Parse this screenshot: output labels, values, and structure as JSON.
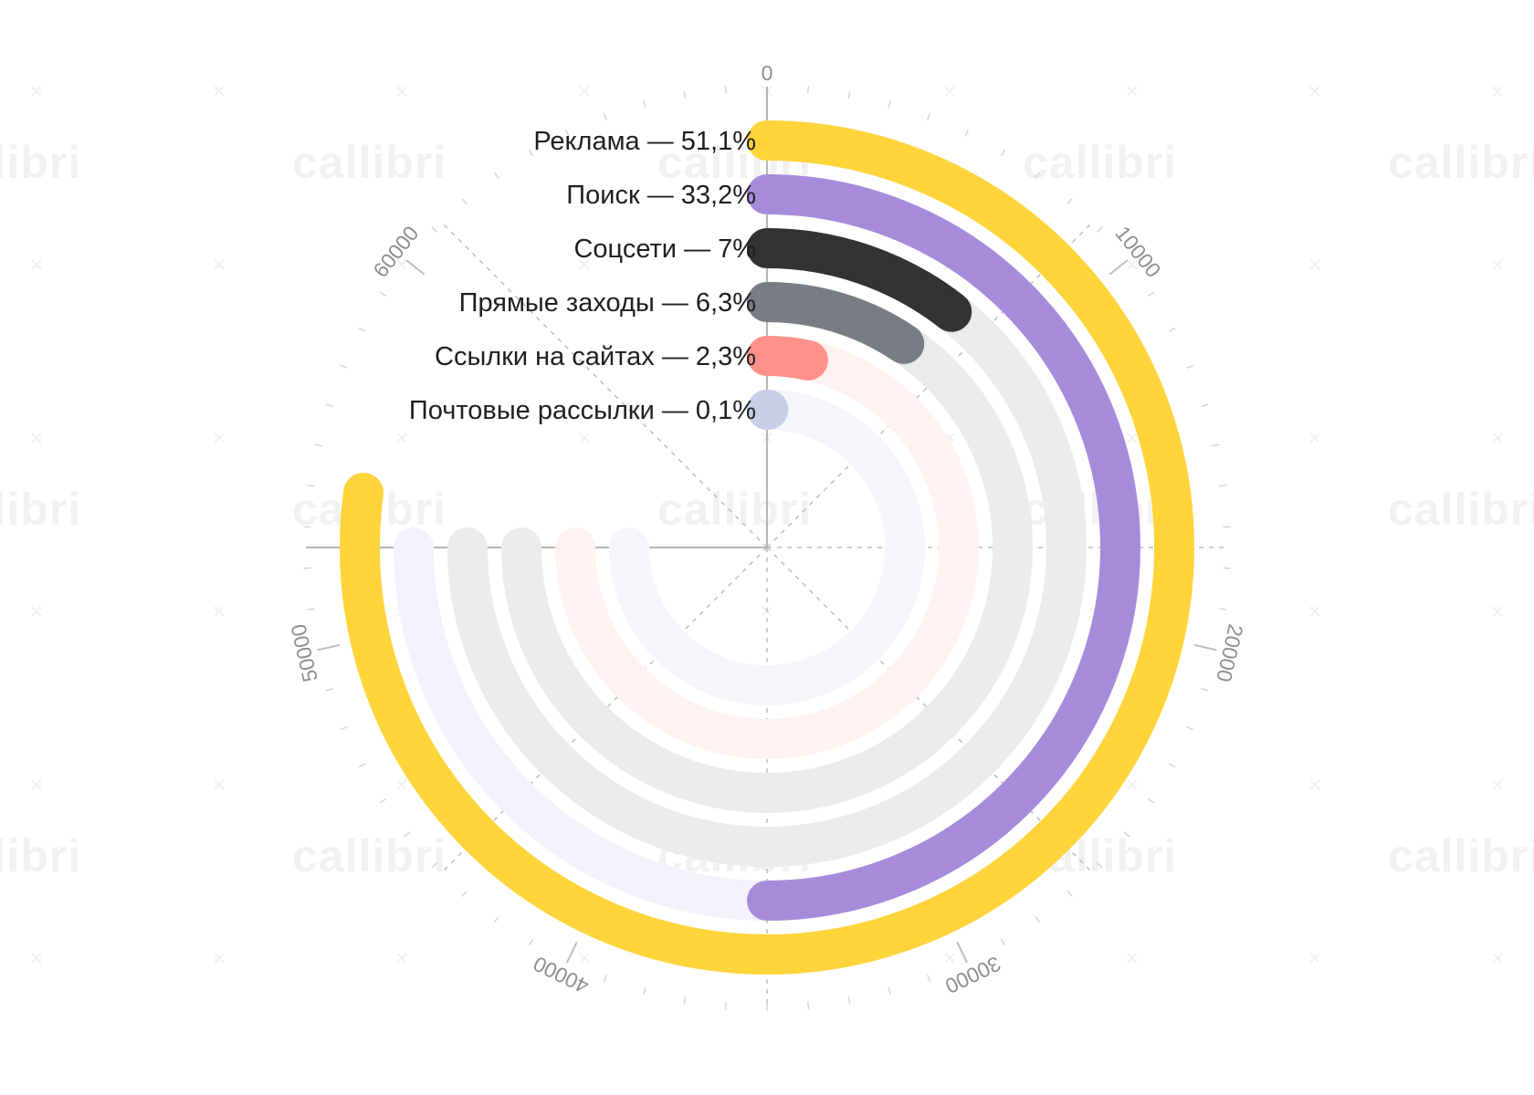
{
  "watermark": "callibri",
  "chart_data": {
    "type": "radial-bar",
    "title": "",
    "axis": {
      "min": 0,
      "max": 70000,
      "ticks": [
        0,
        10000,
        20000,
        30000,
        40000,
        50000,
        60000
      ]
    },
    "series": [
      {
        "name": "Реклама",
        "label": "Реклама — 51,1%",
        "percent": 51.1,
        "value": 54000,
        "color": "#FFD43B",
        "track": "#FFF9E3"
      },
      {
        "name": "Поиск",
        "label": "Поиск — 33,2%",
        "percent": 33.2,
        "value": 35000,
        "color": "#A78BDB",
        "track": "#F3F2FA"
      },
      {
        "name": "Соцсети",
        "label": "Соцсети — 7%",
        "percent": 7,
        "value": 7400,
        "color": "#333333",
        "track": "#EBEBEB"
      },
      {
        "name": "Прямые заходы",
        "label": "Прямые заходы — 6,3%",
        "percent": 6.3,
        "value": 6600,
        "color": "#787D84",
        "track": "#EBEBEB"
      },
      {
        "name": "Ссылки на сайтах",
        "label": "Ссылки на сайтах — 2,3%",
        "percent": 2.3,
        "value": 2400,
        "color": "#FF918A",
        "track": "#FFF2F1"
      },
      {
        "name": "Почтовые рассылки",
        "label": "Почтовые рассылки — 0,1%",
        "percent": 0.1,
        "value": 100,
        "color": "#C9CDE8",
        "track": "#F5F6FB"
      }
    ]
  }
}
